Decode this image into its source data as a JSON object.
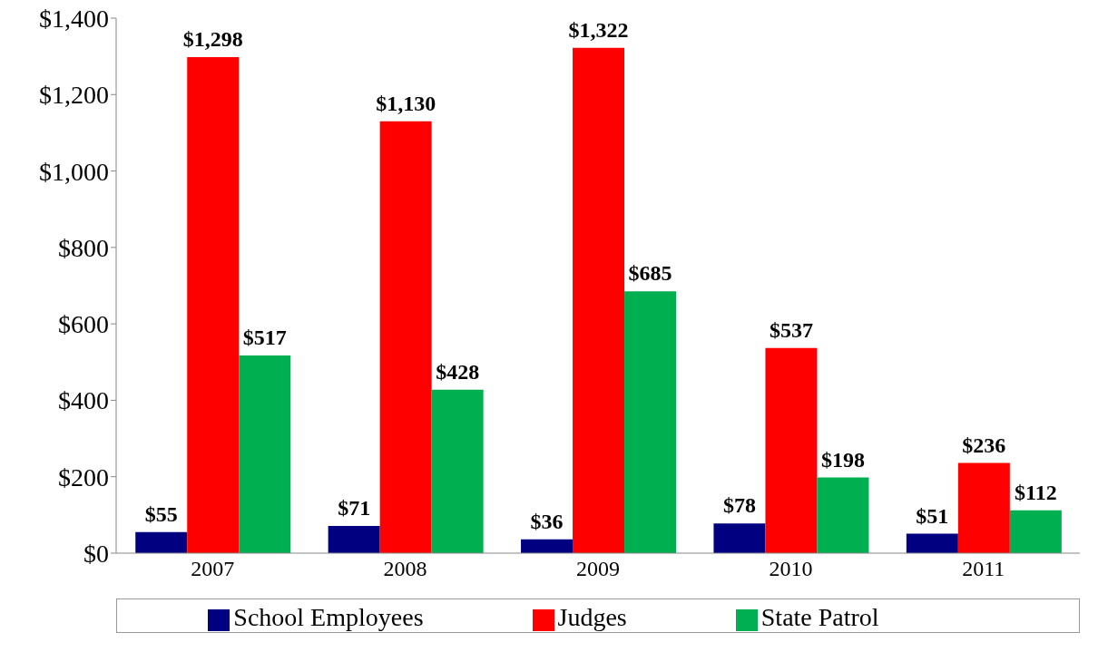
{
  "chart_data": {
    "type": "bar",
    "categories": [
      "2007",
      "2008",
      "2009",
      "2010",
      "2011"
    ],
    "series": [
      {
        "name": "School Employees",
        "color": "#000080",
        "values": [
          55,
          71,
          36,
          78,
          51
        ],
        "value_labels": [
          "$55",
          "$71",
          "$36",
          "$78",
          "$51"
        ]
      },
      {
        "name": "Judges",
        "color": "#ff0000",
        "values": [
          1298,
          1130,
          1322,
          537,
          236
        ],
        "value_labels": [
          "$1,298",
          "$1,130",
          "$1,322",
          "$537",
          "$236"
        ]
      },
      {
        "name": "State Patrol",
        "color": "#00b050",
        "values": [
          517,
          428,
          685,
          198,
          112
        ],
        "value_labels": [
          "$517",
          "$428",
          "$685",
          "$198",
          "$112"
        ]
      }
    ],
    "ylim": [
      0,
      1400
    ],
    "yticks": [
      {
        "value": 0,
        "label": "$0"
      },
      {
        "value": 200,
        "label": "$200"
      },
      {
        "value": 400,
        "label": "$400"
      },
      {
        "value": 600,
        "label": "$600"
      },
      {
        "value": 800,
        "label": "$800"
      },
      {
        "value": 1000,
        "label": "$1,000"
      },
      {
        "value": 1200,
        "label": "$1,200"
      },
      {
        "value": 1400,
        "label": "$1,400"
      }
    ],
    "grid": false,
    "legend": "bottom"
  }
}
